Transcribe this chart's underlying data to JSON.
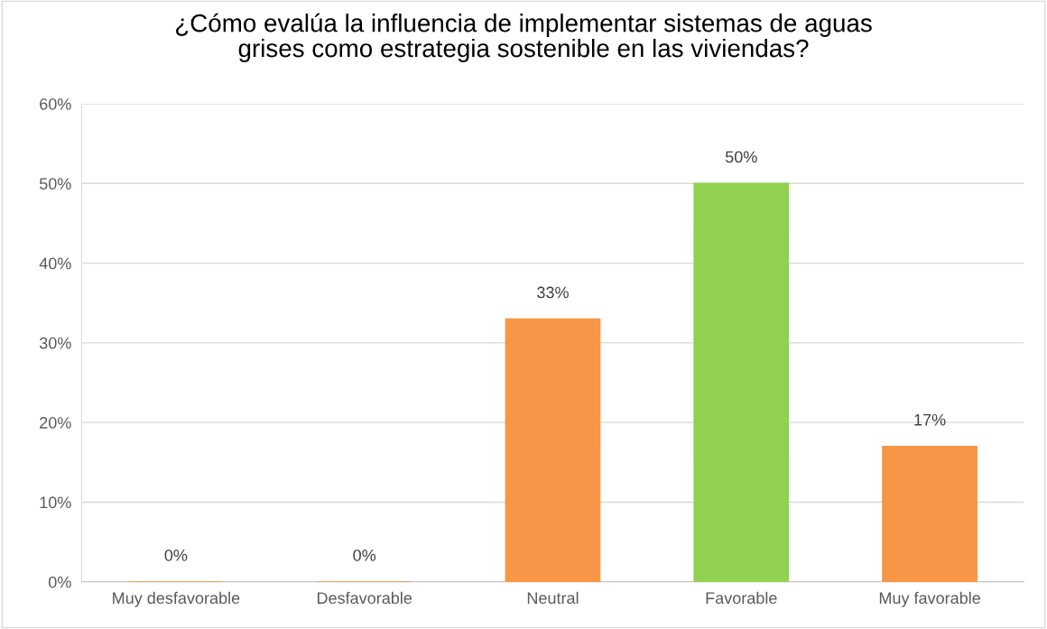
{
  "chart_data": {
    "type": "bar",
    "title": "¿Cómo evalúa la influencia de implementar sistemas de aguas\ngrises como estrategia sostenible en las viviendas?",
    "categories": [
      "Muy desfavorable",
      "Desfavorable",
      "Neutral",
      "Favorable",
      "Muy favorable"
    ],
    "values": [
      0,
      0,
      33,
      50,
      17
    ],
    "colors": [
      "#f79646",
      "#f79646",
      "#f79646",
      "#92d050",
      "#f79646"
    ],
    "value_labels": [
      "0%",
      "0%",
      "33%",
      "50%",
      "17%"
    ],
    "ylim": [
      0,
      60
    ],
    "yticks": [
      {
        "value": 0,
        "label": "0%"
      },
      {
        "value": 10,
        "label": "10%"
      },
      {
        "value": 20,
        "label": "20%"
      },
      {
        "value": 30,
        "label": "30%"
      },
      {
        "value": 40,
        "label": "40%"
      },
      {
        "value": 50,
        "label": "50%"
      },
      {
        "value": 60,
        "label": "60%"
      }
    ],
    "grid": "y"
  }
}
